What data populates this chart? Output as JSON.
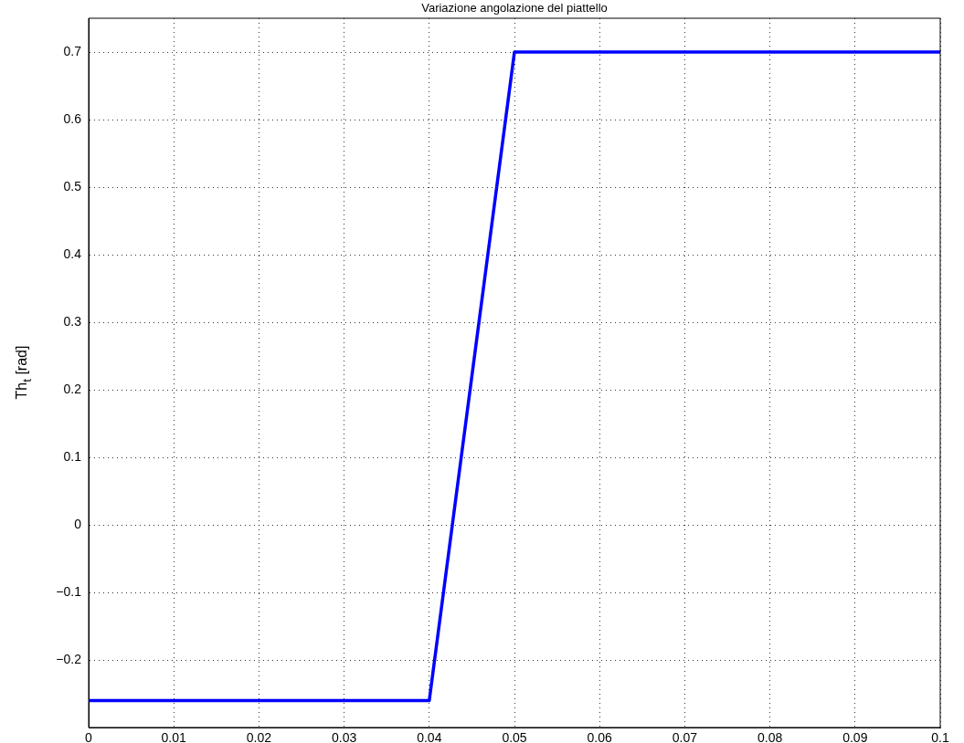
{
  "chart_data": {
    "type": "line",
    "title": "Variazione angolazione del piattello",
    "ylabel": "Th$_{t}$ [rad]",
    "x": [
      0,
      0.04,
      0.05,
      0.1
    ],
    "series": [
      {
        "color": "#0000ff",
        "values": [
          -0.26,
          -0.26,
          0.7,
          0.7
        ]
      }
    ],
    "xlim": [
      0,
      0.1
    ],
    "xticks": [
      0,
      0.01,
      0.02,
      0.03,
      0.04,
      0.05,
      0.06,
      0.07,
      0.08,
      0.09,
      0.1
    ],
    "ylim": [
      -0.3,
      0.75
    ],
    "yticks": [
      {
        "value": -0.2,
        "label": "−0.2"
      },
      {
        "value": -0.1,
        "label": "−0.1"
      },
      0,
      0.1,
      0.2,
      0.3,
      0.4,
      0.5,
      0.6,
      0.7
    ],
    "grid": true,
    "legend": false,
    "marker": "none",
    "line_style": "solid"
  }
}
